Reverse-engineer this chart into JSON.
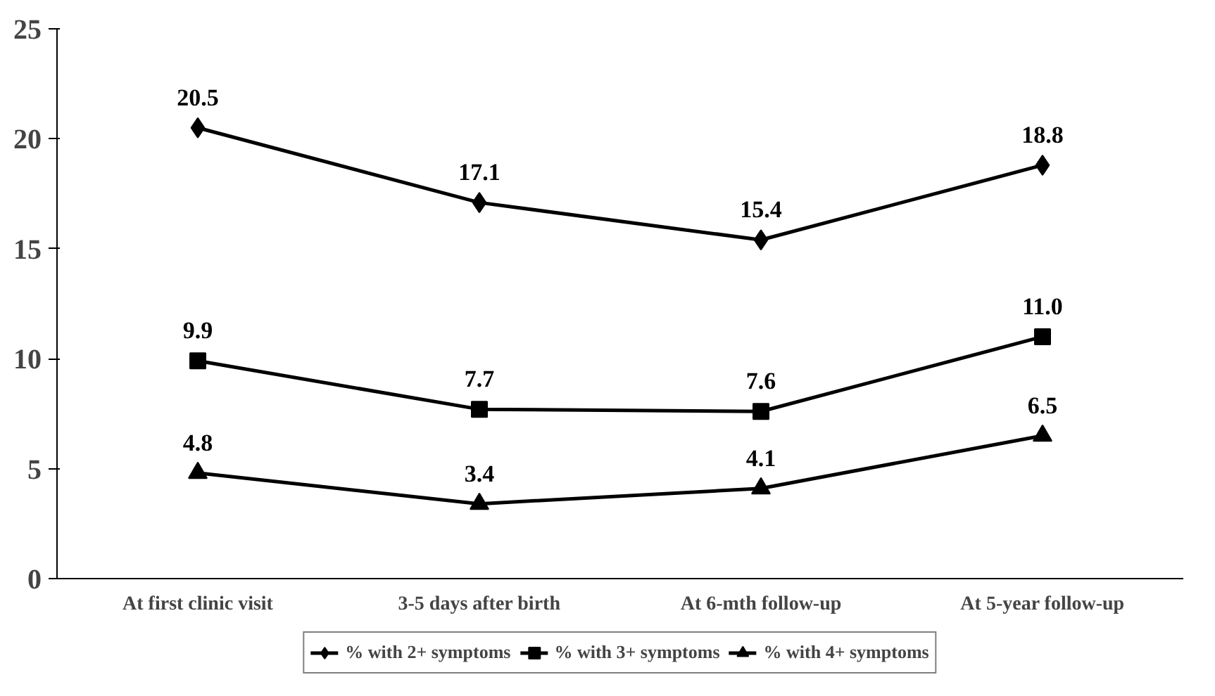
{
  "chart_data": {
    "type": "line",
    "categories": [
      "At first clinic visit",
      "3-5 days after birth",
      "At 6-mth follow-up",
      "At 5-year follow-up"
    ],
    "series": [
      {
        "name": "% with 2+ symptoms",
        "color": "#000000",
        "marker": "diamond",
        "values": [
          20.5,
          17.1,
          15.4,
          18.8
        ]
      },
      {
        "name": "% with 3+ symptoms",
        "color": "#000000",
        "marker": "square",
        "values": [
          9.9,
          7.7,
          7.6,
          11.0
        ],
        "value_labels": [
          "9.9",
          "7.7",
          "7.6",
          "11.0"
        ]
      },
      {
        "name": "% with 4+ symptoms",
        "color": "#000000",
        "marker": "triangle",
        "values": [
          4.8,
          3.4,
          4.1,
          6.5
        ]
      }
    ],
    "ylim": [
      0,
      25
    ],
    "yticks": [
      0,
      5,
      10,
      15,
      20,
      25
    ],
    "data_labels": true,
    "grid": false,
    "legend": "bottom",
    "line_style": "solid"
  }
}
